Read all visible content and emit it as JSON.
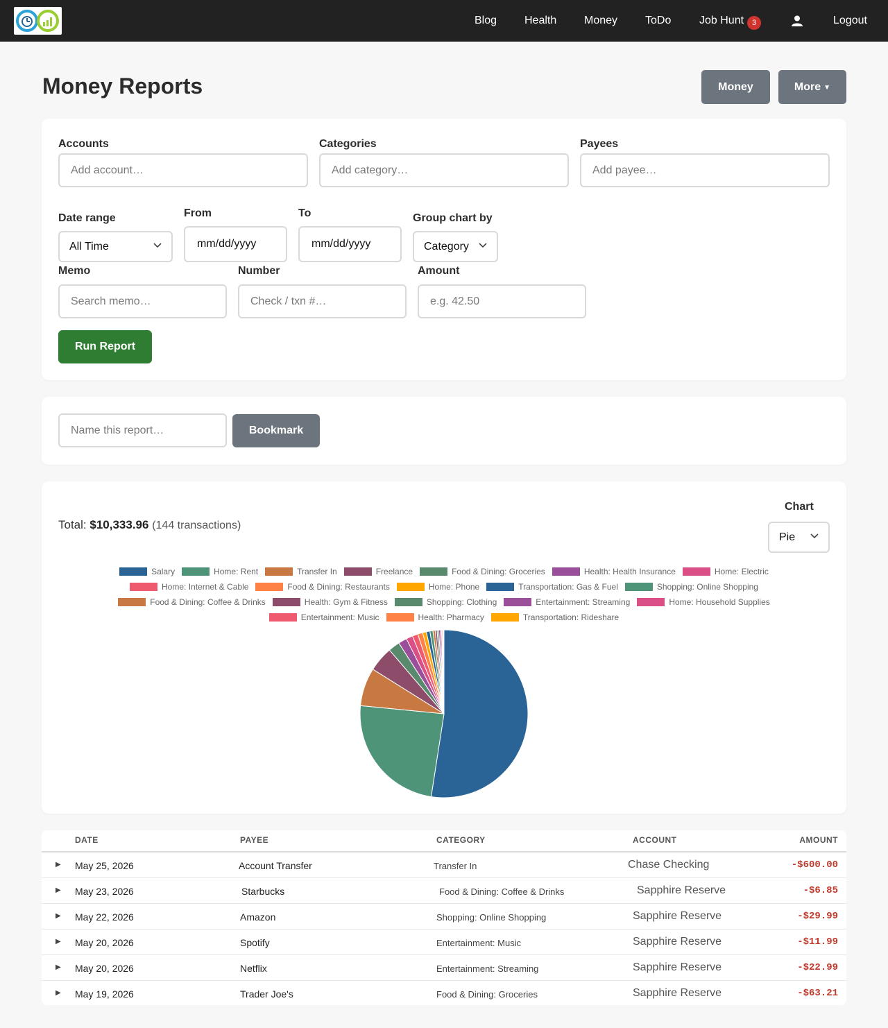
{
  "nav": {
    "links": [
      "Blog",
      "Health",
      "Money",
      "ToDo",
      "Job Hunt"
    ],
    "job_hunt_badge": "3",
    "logout": "Logout"
  },
  "header": {
    "title": "Money Reports",
    "money_btn": "Money",
    "more_btn": "More"
  },
  "filters": {
    "accounts_label": "Accounts",
    "accounts_placeholder": "Add account…",
    "categories_label": "Categories",
    "categories_placeholder": "Add category…",
    "payees_label": "Payees",
    "payees_placeholder": "Add payee…",
    "date_range_label": "Date range",
    "date_range_value": "All Time",
    "from_label": "From",
    "from_value": "mm/dd/yyyy",
    "to_label": "To",
    "to_value": "mm/dd/yyyy",
    "group_label": "Group chart by",
    "group_value": "Category",
    "memo_label": "Memo",
    "memo_placeholder": "Search memo…",
    "number_label": "Number",
    "number_placeholder": "Check / txn #…",
    "amount_label": "Amount",
    "amount_placeholder": "e.g. 42.50",
    "run_btn": "Run Report"
  },
  "bookmark": {
    "placeholder": "Name this report…",
    "button": "Bookmark"
  },
  "summary": {
    "total_label": "Total:",
    "total_value": "$10,333.96",
    "count": "(144 transactions)",
    "chart_label": "Chart",
    "chart_type": "Pie"
  },
  "chart_data": {
    "type": "pie",
    "categories": [
      "Salary",
      "Home: Rent",
      "Transfer In",
      "Freelance",
      "Food & Dining: Groceries",
      "Health: Health Insurance",
      "Home: Electric",
      "Home: Internet & Cable",
      "Food & Dining: Restaurants",
      "Home: Phone",
      "Transportation: Gas & Fuel",
      "Shopping: Online Shopping",
      "Food & Dining: Coffee & Drinks",
      "Health: Gym & Fitness",
      "Shopping: Clothing",
      "Entertainment: Streaming",
      "Home: Household Supplies",
      "Entertainment: Music",
      "Health: Pharmacy",
      "Transportation: Rideshare"
    ],
    "values": [
      5420,
      2490,
      760,
      500,
      230,
      170,
      130,
      110,
      100,
      75,
      70,
      60,
      45,
      38,
      32,
      30,
      26,
      18,
      16,
      14
    ],
    "colors": [
      "#2a6496",
      "#4e9478",
      "#c87941",
      "#8d4d6a",
      "#5a8a6e",
      "#9b4f9b",
      "#d94f86",
      "#f05a6e",
      "#ff8146",
      "#ffa600",
      "#2a6496",
      "#4e9478",
      "#c87941",
      "#8d4d6a",
      "#5a8a6e",
      "#9b4f9b",
      "#d94f86",
      "#f05a6e",
      "#ff8146",
      "#ffa600"
    ],
    "legend_rows": [
      [
        0,
        1,
        2,
        3,
        4,
        5,
        6
      ],
      [
        7,
        8,
        9,
        10,
        11
      ],
      [
        12,
        13,
        14,
        15,
        16
      ],
      [
        17,
        18,
        19
      ]
    ]
  },
  "table": {
    "headers": [
      "DATE",
      "PAYEE",
      "CATEGORY",
      "ACCOUNT",
      "AMOUNT"
    ],
    "rows": [
      {
        "date": "May 25, 2026",
        "payee": "Account Transfer",
        "category": "Transfer In",
        "account": "Chase Checking",
        "amount": "-$600.00"
      },
      {
        "date": "May 23, 2026",
        "payee": "Starbucks",
        "category": "Food & Dining: Coffee & Drinks",
        "account": "Sapphire Reserve",
        "amount": "-$6.85"
      },
      {
        "date": "May 22, 2026",
        "payee": "Amazon",
        "category": "Shopping: Online Shopping",
        "account": "Sapphire Reserve",
        "amount": "-$29.99"
      },
      {
        "date": "May 20, 2026",
        "payee": "Spotify",
        "category": "Entertainment: Music",
        "account": "Sapphire Reserve",
        "amount": "-$11.99"
      },
      {
        "date": "May 20, 2026",
        "payee": "Netflix",
        "category": "Entertainment: Streaming",
        "account": "Sapphire Reserve",
        "amount": "-$22.99"
      },
      {
        "date": "May 19, 2026",
        "payee": "Trader Joe's",
        "category": "Food & Dining: Groceries",
        "account": "Sapphire Reserve",
        "amount": "-$63.21"
      }
    ]
  }
}
